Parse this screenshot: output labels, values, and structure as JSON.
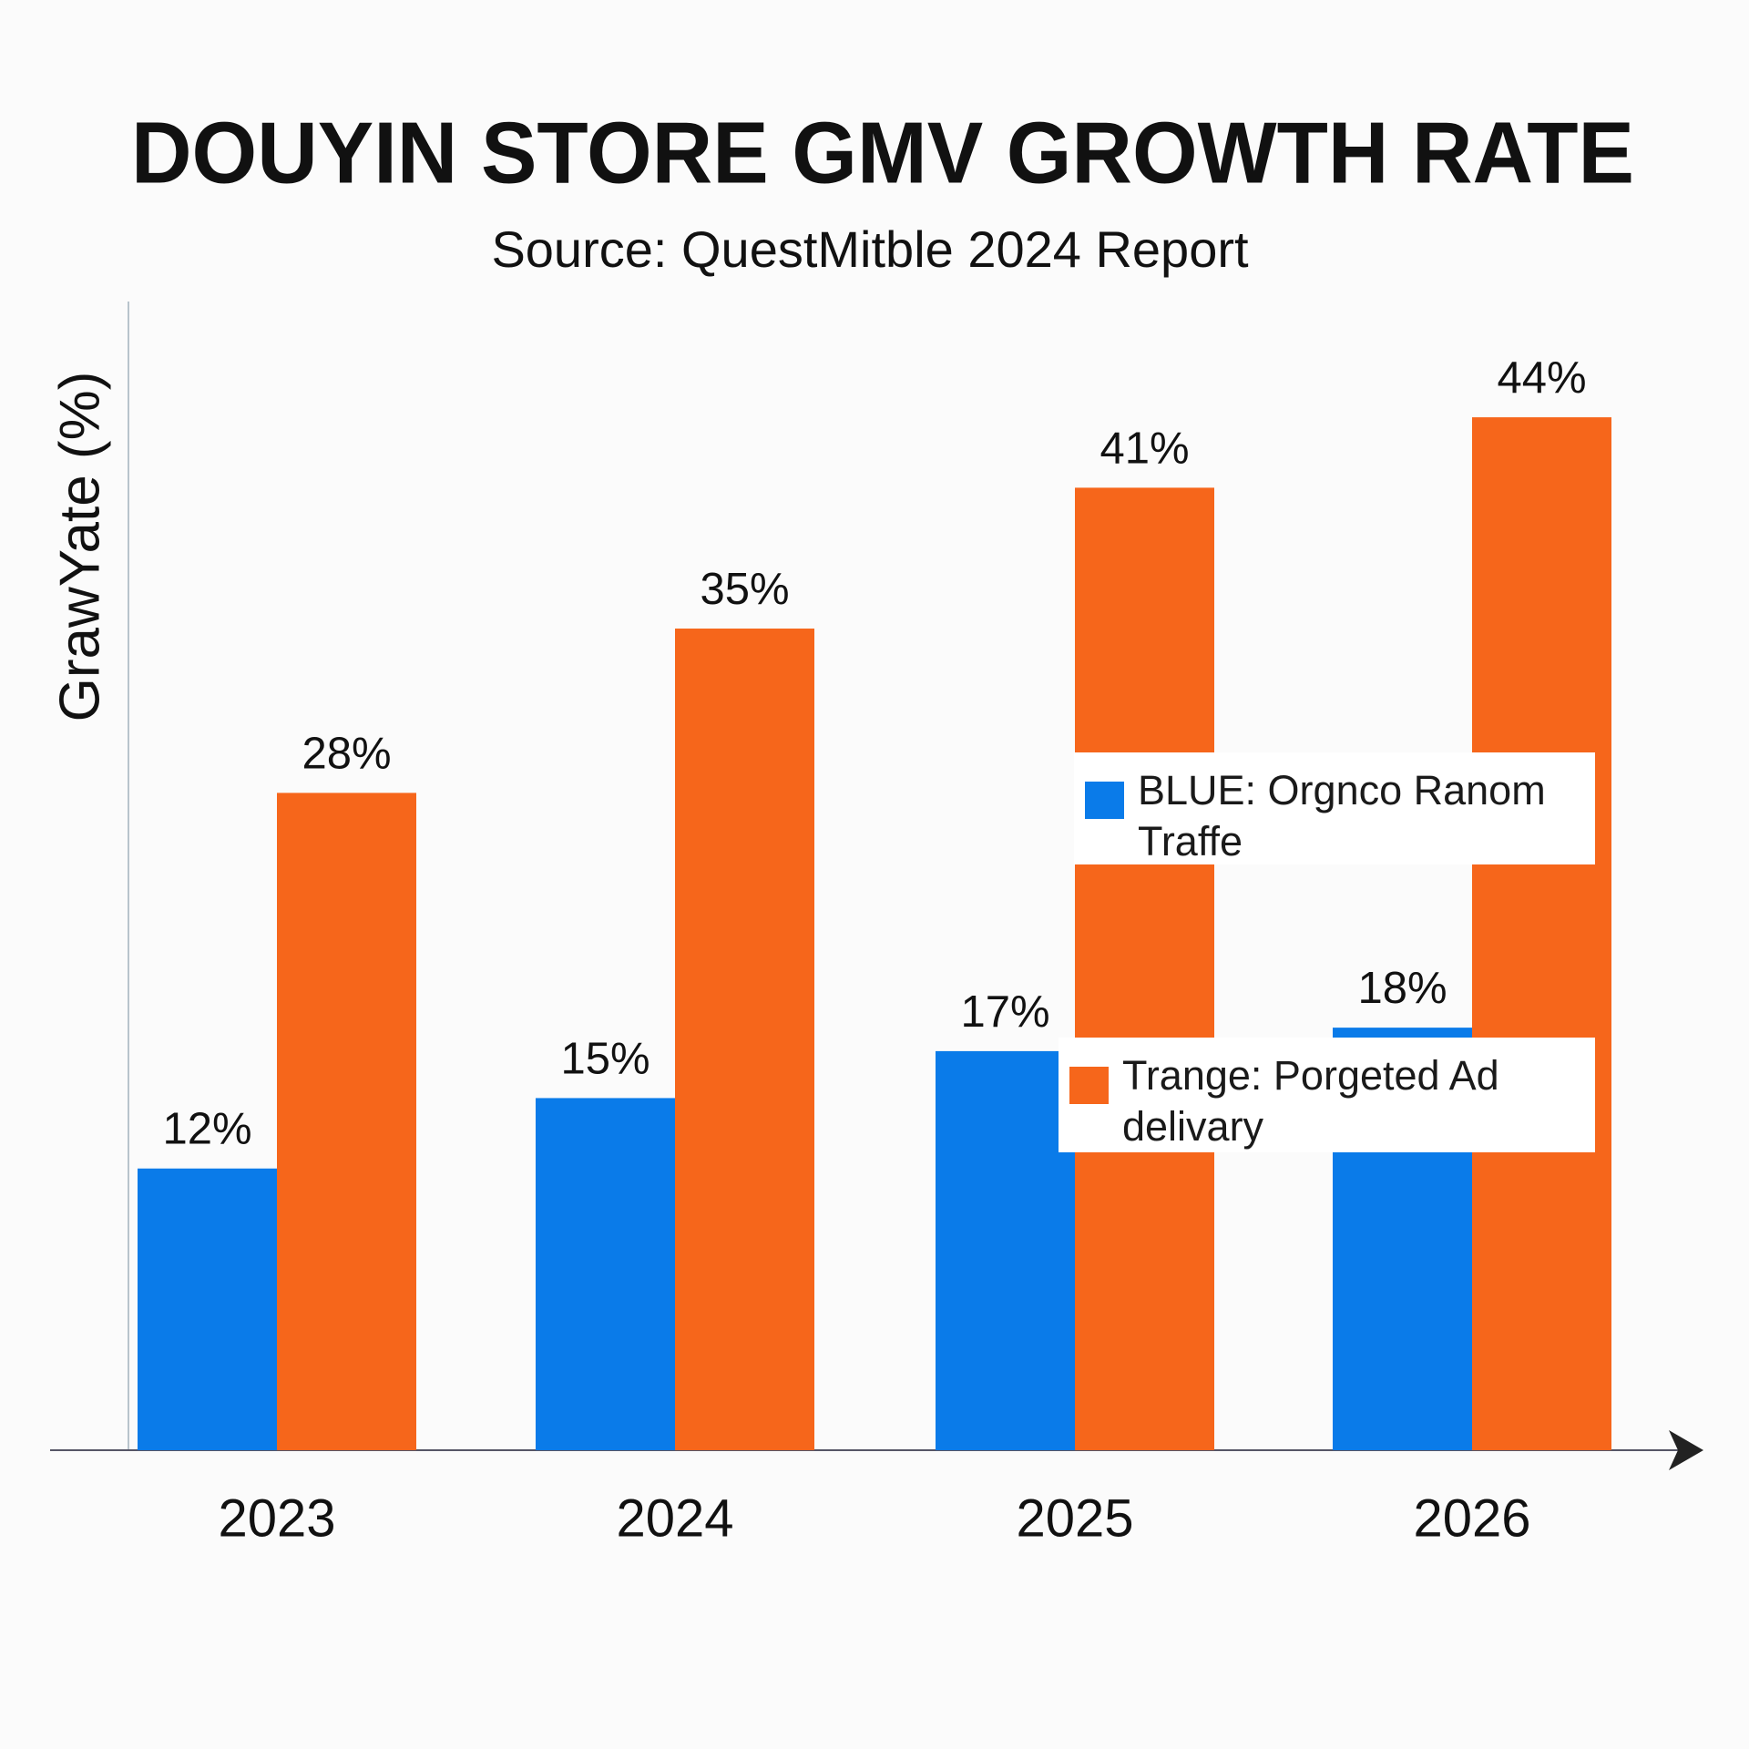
{
  "chart_data": {
    "type": "bar",
    "title": "DOUYIN STORE GMV GROWTH RATE",
    "subtitle": "Source: QuestMitble 2024 Report",
    "y_label": "GrawYate (%)",
    "categories": [
      "2023",
      "2024",
      "2025",
      "2026"
    ],
    "series": [
      {
        "name": "BLUE: Orgnco Ranom Traffe",
        "color": "#0a7be9",
        "values": [
          12,
          15,
          17,
          18
        ],
        "value_labels": [
          "12%",
          "15%",
          "17%",
          "18%"
        ]
      },
      {
        "name": "Trange: Porgeted Ad delivary",
        "color": "#f6661b",
        "values": [
          28,
          35,
          41,
          44
        ],
        "value_labels": [
          "28%",
          "35%",
          "41%",
          "44%"
        ]
      }
    ],
    "ylim": [
      0,
      48
    ]
  }
}
